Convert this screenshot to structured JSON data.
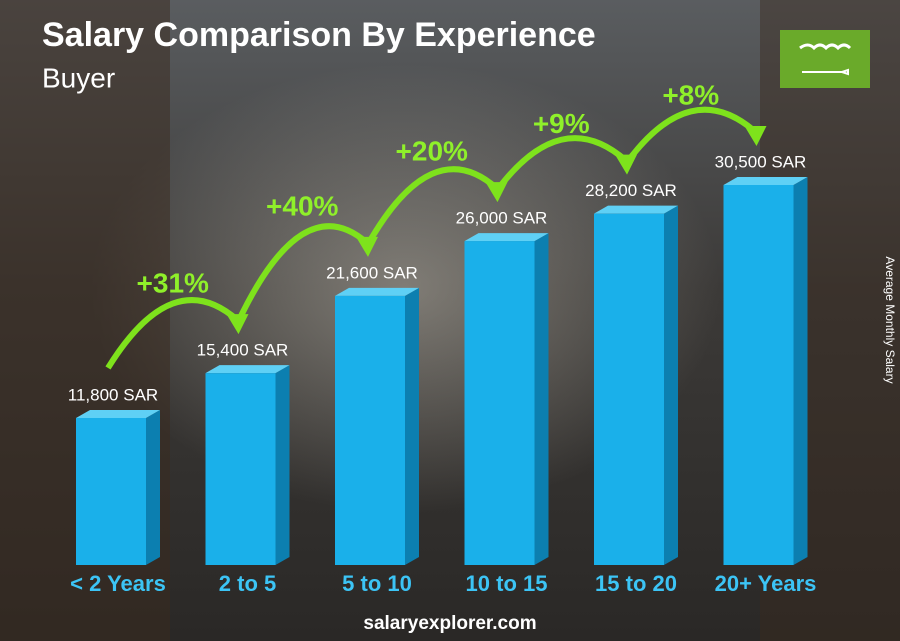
{
  "chart_data": {
    "type": "bar",
    "title": "Salary Comparison By Experience",
    "subtitle": "Buyer",
    "y_axis_label": "Average Monthly Salary",
    "categories": [
      "< 2 Years",
      "2 to 5",
      "5 to 10",
      "10 to 15",
      "15 to 20",
      "20+ Years"
    ],
    "values": [
      11800,
      15400,
      21600,
      26000,
      28200,
      30500
    ],
    "value_labels": [
      "11,800 SAR",
      "15,400 SAR",
      "21,600 SAR",
      "26,000 SAR",
      "28,200 SAR",
      "30,500 SAR"
    ],
    "annotations": [
      "+31%",
      "+40%",
      "+20%",
      "+9%",
      "+8%"
    ],
    "color": "#1ab0ea",
    "footer": "salaryexplorer.com"
  }
}
